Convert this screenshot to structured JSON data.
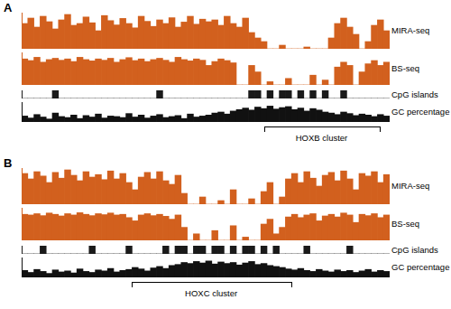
{
  "chart_data": [
    {
      "panel": "A",
      "type": "bar",
      "title": "MIRA-seq",
      "color": "#d2601e",
      "ylim": [
        0,
        100
      ],
      "tick_labels": false,
      "grid": false,
      "values": [
        70,
        85,
        60,
        90,
        75,
        55,
        80,
        95,
        65,
        70,
        88,
        72,
        50,
        92,
        78,
        66,
        84,
        70,
        58,
        90,
        76,
        62,
        80,
        70,
        86,
        60,
        74,
        90,
        68,
        82,
        75,
        80,
        65,
        90,
        70,
        60,
        85,
        45,
        30,
        20,
        0,
        0,
        10,
        0,
        0,
        0,
        5,
        0,
        0,
        0,
        30,
        70,
        85,
        60,
        40,
        0,
        20,
        65,
        80,
        50
      ]
    },
    {
      "panel": "A",
      "type": "bar",
      "title": "BS-seq",
      "color": "#d2601e",
      "ylim": [
        0,
        100
      ],
      "tick_labels": false,
      "grid": false,
      "values": [
        80,
        75,
        85,
        70,
        78,
        82,
        76,
        80,
        72,
        85,
        78,
        74,
        80,
        76,
        82,
        70,
        78,
        84,
        75,
        80,
        72,
        78,
        82,
        76,
        70,
        85,
        78,
        74,
        80,
        76,
        60,
        72,
        80,
        75,
        68,
        0,
        0,
        60,
        40,
        0,
        10,
        0,
        0,
        20,
        0,
        0,
        0,
        30,
        0,
        15,
        0,
        55,
        70,
        60,
        0,
        40,
        65,
        75,
        60,
        70
      ]
    },
    {
      "panel": "A",
      "type": "bar",
      "title": "CpG islands",
      "color": "#1a1a1a",
      "ylim": [
        0,
        1
      ],
      "tick_labels": false,
      "grid": false,
      "values": [
        0,
        0,
        0,
        0,
        0,
        1,
        0,
        0,
        0,
        0,
        0,
        0,
        0,
        0,
        0,
        0,
        0,
        0,
        0,
        0,
        0,
        0,
        1,
        0,
        0,
        0,
        0,
        0,
        0,
        0,
        0,
        0,
        0,
        0,
        0,
        0,
        0,
        1,
        1,
        0,
        1,
        0,
        1,
        1,
        0,
        1,
        0,
        1,
        0,
        1,
        0,
        0,
        1,
        0,
        0,
        0,
        0,
        0,
        0,
        0
      ]
    },
    {
      "panel": "A",
      "type": "bar",
      "title": "GC percentage",
      "color": "#111111",
      "ylim": [
        30,
        70
      ],
      "tick_labels": false,
      "grid": false,
      "annotations": [
        "HOXB cluster"
      ],
      "values": [
        42,
        38,
        45,
        40,
        36,
        48,
        41,
        39,
        44,
        37,
        43,
        40,
        46,
        38,
        42,
        41,
        39,
        47,
        40,
        44,
        38,
        42,
        45,
        39,
        41,
        43,
        37,
        46,
        40,
        42,
        44,
        48,
        50,
        46,
        52,
        55,
        58,
        54,
        60,
        57,
        62,
        56,
        59,
        61,
        55,
        58,
        52,
        57,
        54,
        50,
        48,
        45,
        50,
        47,
        43,
        46,
        44,
        41,
        45,
        42
      ]
    },
    {
      "panel": "B",
      "type": "bar",
      "title": "MIRA-seq",
      "color": "#d2601e",
      "ylim": [
        0,
        100
      ],
      "tick_labels": false,
      "grid": false,
      "values": [
        85,
        70,
        90,
        78,
        60,
        88,
        72,
        95,
        80,
        65,
        90,
        75,
        82,
        68,
        92,
        70,
        85,
        60,
        40,
        75,
        88,
        70,
        90,
        65,
        55,
        80,
        30,
        0,
        0,
        20,
        0,
        0,
        10,
        0,
        40,
        0,
        0,
        15,
        0,
        35,
        60,
        0,
        20,
        70,
        85,
        60,
        90,
        72,
        50,
        80,
        88,
        65,
        92,
        70,
        40,
        85,
        78,
        90,
        60,
        82
      ]
    },
    {
      "panel": "B",
      "type": "bar",
      "title": "BS-seq",
      "color": "#d2601e",
      "ylim": [
        0,
        100
      ],
      "tick_labels": false,
      "grid": false,
      "values": [
        80,
        78,
        82,
        76,
        84,
        80,
        75,
        82,
        78,
        85,
        80,
        76,
        82,
        79,
        84,
        78,
        80,
        70,
        60,
        78,
        82,
        76,
        80,
        74,
        65,
        78,
        40,
        0,
        20,
        0,
        0,
        30,
        0,
        0,
        45,
        0,
        10,
        0,
        0,
        50,
        65,
        20,
        40,
        72,
        80,
        70,
        78,
        82,
        60,
        75,
        80,
        72,
        84,
        78,
        55,
        80,
        76,
        82,
        70,
        78
      ]
    },
    {
      "panel": "B",
      "type": "bar",
      "title": "CpG islands",
      "color": "#1a1a1a",
      "ylim": [
        0,
        1
      ],
      "tick_labels": false,
      "grid": false,
      "values": [
        0,
        0,
        0,
        1,
        0,
        0,
        0,
        0,
        0,
        0,
        0,
        1,
        0,
        0,
        0,
        0,
        0,
        1,
        0,
        0,
        0,
        0,
        0,
        1,
        0,
        1,
        1,
        0,
        1,
        1,
        0,
        1,
        1,
        0,
        1,
        0,
        1,
        1,
        0,
        1,
        0,
        1,
        0,
        0,
        0,
        0,
        1,
        0,
        0,
        0,
        0,
        0,
        0,
        1,
        0,
        0,
        0,
        0,
        0,
        0
      ]
    },
    {
      "panel": "B",
      "type": "bar",
      "title": "GC percentage",
      "color": "#111111",
      "ylim": [
        30,
        70
      ],
      "tick_labels": false,
      "grid": false,
      "annotations": [
        "HOXC cluster"
      ],
      "values": [
        44,
        40,
        46,
        42,
        38,
        45,
        41,
        43,
        39,
        47,
        42,
        40,
        45,
        43,
        48,
        41,
        44,
        46,
        50,
        47,
        43,
        49,
        52,
        48,
        54,
        56,
        60,
        58,
        62,
        59,
        63,
        57,
        61,
        58,
        60,
        55,
        59,
        62,
        56,
        58,
        54,
        52,
        50,
        47,
        45,
        48,
        44,
        42,
        46,
        43,
        41,
        45,
        42,
        44,
        40,
        43,
        46,
        41,
        44,
        42
      ]
    }
  ]
}
